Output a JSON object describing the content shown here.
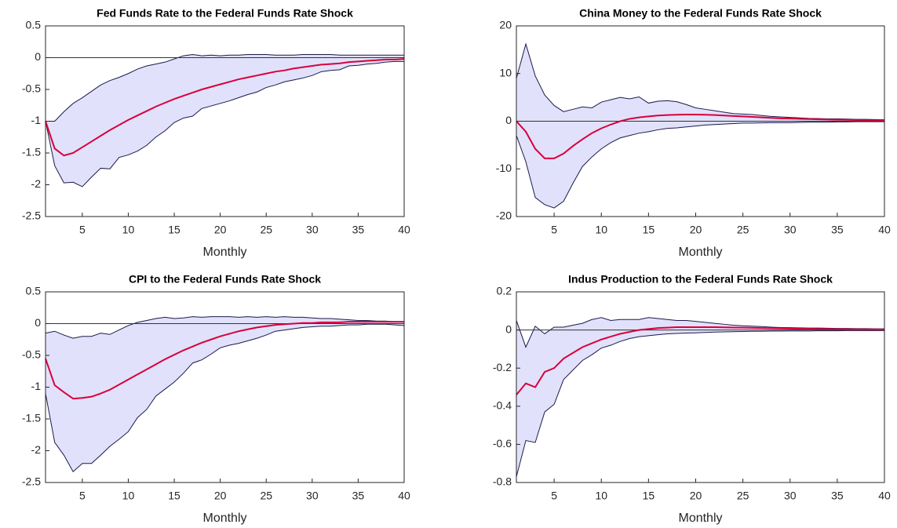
{
  "chart_data": [
    {
      "type": "line",
      "title": "Fed Funds Rate to the Federal Funds Rate Shock",
      "xlabel": "Monthly",
      "x": [
        1,
        2,
        3,
        4,
        5,
        6,
        7,
        8,
        9,
        10,
        11,
        12,
        13,
        14,
        15,
        16,
        17,
        18,
        19,
        20,
        21,
        22,
        23,
        24,
        25,
        26,
        27,
        28,
        29,
        30,
        31,
        32,
        33,
        34,
        35,
        36,
        37,
        38,
        39,
        40
      ],
      "series": [
        {
          "color": "#d9003a",
          "values": [
            -1,
            -1.43,
            -1.54,
            -1.5,
            -1.41,
            -1.32,
            -1.23,
            -1.14,
            -1.06,
            -0.98,
            -0.91,
            -0.84,
            -0.77,
            -0.71,
            -0.65,
            -0.6,
            -0.55,
            -0.5,
            -0.46,
            -0.42,
            -0.38,
            -0.34,
            -0.31,
            -0.28,
            -0.25,
            -0.22,
            -0.2,
            -0.17,
            -0.15,
            -0.13,
            -0.11,
            -0.1,
            -0.09,
            -0.07,
            -0.06,
            -0.05,
            -0.04,
            -0.03,
            -0.03,
            -0.02
          ]
        }
      ],
      "band": {
        "fill": "#e1e1fb",
        "edge": "#1a1a4a",
        "upper": [
          -1,
          -1,
          -0.85,
          -0.72,
          -0.63,
          -0.53,
          -0.43,
          -0.36,
          -0.31,
          -0.25,
          -0.18,
          -0.13,
          -0.1,
          -0.07,
          -0.02,
          0.03,
          0.05,
          0.03,
          0.04,
          0.03,
          0.04,
          0.04,
          0.05,
          0.05,
          0.05,
          0.04,
          0.04,
          0.04,
          0.05,
          0.05,
          0.05,
          0.05,
          0.04,
          0.04,
          0.04,
          0.04,
          0.04,
          0.04,
          0.04,
          0.04
        ],
        "lower": [
          -1,
          -1.7,
          -1.97,
          -1.96,
          -2.03,
          -1.88,
          -1.74,
          -1.75,
          -1.57,
          -1.53,
          -1.47,
          -1.38,
          -1.25,
          -1.15,
          -1.02,
          -0.95,
          -0.92,
          -0.8,
          -0.76,
          -0.72,
          -0.68,
          -0.63,
          -0.58,
          -0.54,
          -0.47,
          -0.43,
          -0.38,
          -0.35,
          -0.32,
          -0.28,
          -0.22,
          -0.2,
          -0.19,
          -0.13,
          -0.12,
          -0.1,
          -0.09,
          -0.07,
          -0.06,
          -0.06
        ]
      },
      "hline": 0,
      "xlim": [
        1,
        40
      ],
      "xticks": [
        5,
        10,
        15,
        20,
        25,
        30,
        35,
        40
      ],
      "ylim": [
        -2.5,
        0.5
      ],
      "yticks": [
        -2.5,
        -2,
        -1.5,
        -1,
        -0.5,
        0,
        0.5
      ]
    },
    {
      "type": "line",
      "title": "China Money to the Federal Funds Rate Shock",
      "xlabel": "Monthly",
      "x": [
        1,
        2,
        3,
        4,
        5,
        6,
        7,
        8,
        9,
        10,
        11,
        12,
        13,
        14,
        15,
        16,
        17,
        18,
        19,
        20,
        21,
        22,
        23,
        24,
        25,
        26,
        27,
        28,
        29,
        30,
        31,
        32,
        33,
        34,
        35,
        36,
        37,
        38,
        39,
        40
      ],
      "series": [
        {
          "color": "#d9003a",
          "values": [
            0,
            -2.2,
            -5.8,
            -7.8,
            -7.8,
            -6.8,
            -5.2,
            -3.8,
            -2.5,
            -1.5,
            -0.7,
            0,
            0.5,
            0.8,
            1.0,
            1.2,
            1.3,
            1.35,
            1.4,
            1.4,
            1.35,
            1.3,
            1.2,
            1.1,
            1.0,
            0.9,
            0.8,
            0.7,
            0.6,
            0.55,
            0.5,
            0.45,
            0.4,
            0.35,
            0.3,
            0.28,
            0.25,
            0.22,
            0.2,
            0.18
          ]
        }
      ],
      "band": {
        "fill": "#e1e1fb",
        "edge": "#1a1a4a",
        "upper": [
          9,
          16.2,
          9.5,
          5.5,
          3.3,
          2,
          2.5,
          3,
          2.8,
          4,
          4.5,
          5,
          4.7,
          5.1,
          3.8,
          4.2,
          4.3,
          4.1,
          3.5,
          2.8,
          2.5,
          2.2,
          1.9,
          1.6,
          1.5,
          1.4,
          1.2,
          1.0,
          0.9,
          0.8,
          0.7,
          0.6,
          0.55,
          0.5,
          0.5,
          0.45,
          0.4,
          0.4,
          0.35,
          0.3
        ],
        "lower": [
          -3,
          -8.5,
          -16,
          -17.5,
          -18.2,
          -16.8,
          -13,
          -9.5,
          -7.5,
          -5.8,
          -4.5,
          -3.5,
          -3,
          -2.5,
          -2.2,
          -1.8,
          -1.5,
          -1.4,
          -1.2,
          -1,
          -0.8,
          -0.7,
          -0.6,
          -0.5,
          -0.4,
          -0.4,
          -0.35,
          -0.3,
          -0.3,
          -0.3,
          -0.25,
          -0.2,
          -0.2,
          -0.2,
          -0.15,
          -0.15,
          -0.1,
          -0.1,
          -0.1,
          -0.1
        ]
      },
      "hline": 0,
      "xlim": [
        1,
        40
      ],
      "xticks": [
        5,
        10,
        15,
        20,
        25,
        30,
        35,
        40
      ],
      "ylim": [
        -20,
        20
      ],
      "yticks": [
        -20,
        -10,
        0,
        10,
        20
      ]
    },
    {
      "type": "line",
      "title": "CPI to the Federal Funds Rate Shock",
      "xlabel": "Monthly",
      "x": [
        1,
        2,
        3,
        4,
        5,
        6,
        7,
        8,
        9,
        10,
        11,
        12,
        13,
        14,
        15,
        16,
        17,
        18,
        19,
        20,
        21,
        22,
        23,
        24,
        25,
        26,
        27,
        28,
        29,
        30,
        31,
        32,
        33,
        34,
        35,
        36,
        37,
        38,
        39,
        40
      ],
      "series": [
        {
          "color": "#d9003a",
          "values": [
            -0.55,
            -0.97,
            -1.08,
            -1.18,
            -1.17,
            -1.15,
            -1.1,
            -1.04,
            -0.96,
            -0.88,
            -0.8,
            -0.72,
            -0.64,
            -0.56,
            -0.49,
            -0.42,
            -0.36,
            -0.3,
            -0.25,
            -0.2,
            -0.16,
            -0.12,
            -0.09,
            -0.06,
            -0.04,
            -0.02,
            -0.01,
            0,
            0.01,
            0.01,
            0.02,
            0.02,
            0.02,
            0.03,
            0.03,
            0.03,
            0.03,
            0.03,
            0.03,
            0.03
          ]
        }
      ],
      "band": {
        "fill": "#e1e1fb",
        "edge": "#1a1a4a",
        "upper": [
          -0.15,
          -0.12,
          -0.18,
          -0.23,
          -0.2,
          -0.2,
          -0.15,
          -0.17,
          -0.1,
          -0.03,
          0.02,
          0.05,
          0.08,
          0.1,
          0.08,
          0.09,
          0.11,
          0.1,
          0.11,
          0.11,
          0.11,
          0.1,
          0.11,
          0.1,
          0.11,
          0.1,
          0.11,
          0.1,
          0.1,
          0.09,
          0.08,
          0.08,
          0.07,
          0.06,
          0.05,
          0.05,
          0.04,
          0.04,
          0.03,
          0.03
        ],
        "lower": [
          -1.1,
          -1.87,
          -2.07,
          -2.33,
          -2.2,
          -2.2,
          -2.07,
          -1.93,
          -1.82,
          -1.7,
          -1.48,
          -1.35,
          -1.14,
          -1.03,
          -0.92,
          -0.78,
          -0.62,
          -0.57,
          -0.48,
          -0.38,
          -0.34,
          -0.31,
          -0.27,
          -0.23,
          -0.18,
          -0.12,
          -0.1,
          -0.08,
          -0.06,
          -0.05,
          -0.04,
          -0.04,
          -0.03,
          -0.02,
          -0.02,
          -0.01,
          -0.01,
          -0.01,
          -0.02,
          -0.03
        ]
      },
      "hline": 0,
      "xlim": [
        1,
        40
      ],
      "xticks": [
        5,
        10,
        15,
        20,
        25,
        30,
        35,
        40
      ],
      "ylim": [
        -2.5,
        0.5
      ],
      "yticks": [
        -2.5,
        -2,
        -1.5,
        -1,
        -0.5,
        0,
        0.5
      ]
    },
    {
      "type": "line",
      "title": "Indus Production to the Federal Funds Rate Shock",
      "xlabel": "Monthly",
      "x": [
        1,
        2,
        3,
        4,
        5,
        6,
        7,
        8,
        9,
        10,
        11,
        12,
        13,
        14,
        15,
        16,
        17,
        18,
        19,
        20,
        21,
        22,
        23,
        24,
        25,
        26,
        27,
        28,
        29,
        30,
        31,
        32,
        33,
        34,
        35,
        36,
        37,
        38,
        39,
        40
      ],
      "series": [
        {
          "color": "#d9003a",
          "values": [
            -0.34,
            -0.28,
            -0.3,
            -0.22,
            -0.2,
            -0.15,
            -0.12,
            -0.09,
            -0.07,
            -0.05,
            -0.035,
            -0.02,
            -0.01,
            0,
            0.005,
            0.01,
            0.012,
            0.015,
            0.015,
            0.015,
            0.015,
            0.015,
            0.014,
            0.013,
            0.012,
            0.011,
            0.01,
            0.009,
            0.008,
            0.007,
            0.006,
            0.006,
            0.005,
            0.005,
            0.004,
            0.004,
            0.003,
            0.003,
            0.003,
            0.002
          ]
        }
      ],
      "band": {
        "fill": "#e1e1fb",
        "edge": "#1a1a4a",
        "upper": [
          0.05,
          -0.09,
          0.02,
          -0.02,
          0.015,
          0.015,
          0.025,
          0.035,
          0.055,
          0.065,
          0.05,
          0.055,
          0.055,
          0.055,
          0.065,
          0.06,
          0.055,
          0.05,
          0.05,
          0.045,
          0.04,
          0.035,
          0.03,
          0.025,
          0.022,
          0.02,
          0.018,
          0.015,
          0.013,
          0.012,
          0.011,
          0.01,
          0.01,
          0.009,
          0.008,
          0.008,
          0.007,
          0.007,
          0.006,
          0.006
        ],
        "lower": [
          -0.77,
          -0.58,
          -0.59,
          -0.43,
          -0.39,
          -0.26,
          -0.21,
          -0.16,
          -0.13,
          -0.095,
          -0.08,
          -0.06,
          -0.045,
          -0.035,
          -0.03,
          -0.025,
          -0.02,
          -0.018,
          -0.016,
          -0.015,
          -0.013,
          -0.011,
          -0.01,
          -0.009,
          -0.008,
          -0.007,
          -0.007,
          -0.006,
          -0.006,
          -0.005,
          -0.005,
          -0.005,
          -0.004,
          -0.004,
          -0.004,
          -0.003,
          -0.003,
          -0.003,
          -0.003,
          -0.003
        ]
      },
      "hline": 0,
      "xlim": [
        1,
        40
      ],
      "xticks": [
        5,
        10,
        15,
        20,
        25,
        30,
        35,
        40
      ],
      "ylim": [
        -0.8,
        0.2
      ],
      "yticks": [
        -0.8,
        -0.6,
        -0.4,
        -0.2,
        0,
        0.2
      ]
    }
  ]
}
